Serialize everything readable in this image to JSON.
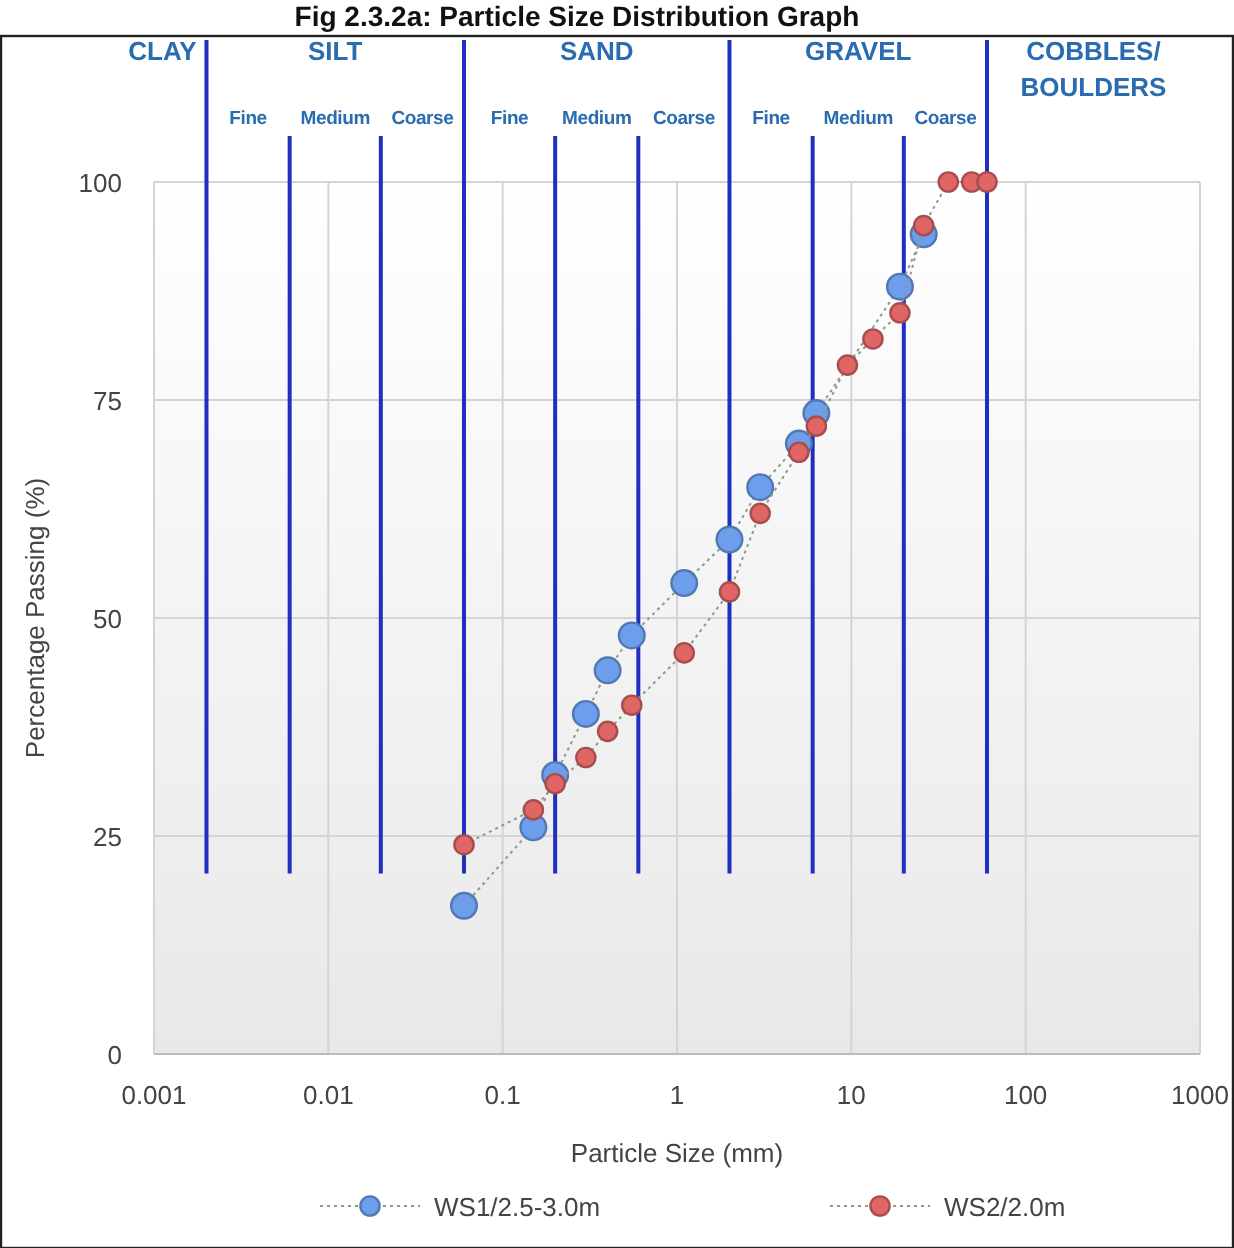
{
  "chart_data": {
    "type": "line",
    "title": "Fig 2.3.2a: Particle Size Distribution Graph",
    "xlabel": "Particle Size (mm)",
    "ylabel": "Percentage Passing (%)",
    "log": "x",
    "xlim": [
      0.001,
      1000
    ],
    "xticks": [
      0.001,
      0.01,
      0.1,
      1,
      10,
      100,
      1000
    ],
    "ylim": [
      0,
      100
    ],
    "yticks": [
      0,
      25,
      50,
      75,
      100
    ],
    "grid": true,
    "legend": "bottom",
    "marker": "circle",
    "line_style": "dotted",
    "series": [
      {
        "name": "WS1/2.5-3.0m",
        "color": "#6d9eeb",
        "x": [
          0.06,
          0.15,
          0.2,
          0.3,
          0.4,
          0.55,
          1.1,
          2,
          3,
          5,
          6.3,
          19,
          26
        ],
        "values": [
          17,
          26,
          32,
          39,
          44,
          48,
          54,
          59,
          65,
          70,
          73.5,
          88,
          94
        ]
      },
      {
        "name": "WS2/2.0m",
        "color": "#e06666",
        "x": [
          0.06,
          0.15,
          0.2,
          0.3,
          0.4,
          0.55,
          1.1,
          2,
          3,
          5,
          6.3,
          9.5,
          13.3,
          19,
          26,
          36,
          49,
          60
        ],
        "values": [
          24,
          28,
          31,
          34,
          37,
          40,
          46,
          53,
          62,
          69,
          72,
          79,
          82,
          85,
          95,
          100,
          100,
          100
        ]
      }
    ],
    "ref_lines": [
      {
        "axis": "x",
        "value": 0.002,
        "color": "#1f2fbf"
      },
      {
        "axis": "x",
        "value": 0.06,
        "color": "#1f2fbf"
      },
      {
        "axis": "x",
        "value": 2,
        "color": "#1f2fbf"
      },
      {
        "axis": "x",
        "value": 60,
        "color": "#1f2fbf"
      },
      {
        "axis": "x",
        "value": 0.006,
        "color": "#1f2fbf"
      },
      {
        "axis": "x",
        "value": 0.02,
        "color": "#1f2fbf"
      },
      {
        "axis": "x",
        "value": 0.2,
        "color": "#1f2fbf"
      },
      {
        "axis": "x",
        "value": 0.6,
        "color": "#1f2fbf"
      },
      {
        "axis": "x",
        "value": 6,
        "color": "#1f2fbf"
      },
      {
        "axis": "x",
        "value": 20,
        "color": "#1f2fbf"
      }
    ],
    "annotations": [
      "CLAY",
      "SILT",
      "SAND",
      "GRAVEL",
      "COBBLES/ BOULDERS",
      "Fine",
      "Medium",
      "Coarse",
      "Fine",
      "Medium",
      "Coarse",
      "Fine",
      "Medium",
      "Coarse"
    ]
  }
}
